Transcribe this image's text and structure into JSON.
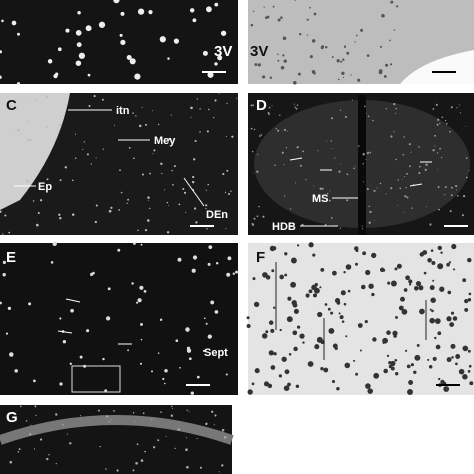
{
  "panels": [
    {
      "annotations": [
        "3V"
      ]
    },
    {
      "annotations": [
        "3V"
      ]
    },
    {
      "label": "C",
      "annotations": [
        "itn",
        "Mey",
        "Ep",
        "DEn"
      ]
    },
    {
      "label": "D",
      "annotations": [
        "MS",
        "HDB"
      ]
    },
    {
      "label": "E",
      "annotations": [
        "Sept"
      ]
    },
    {
      "label": "F"
    },
    {
      "label": "G"
    }
  ]
}
